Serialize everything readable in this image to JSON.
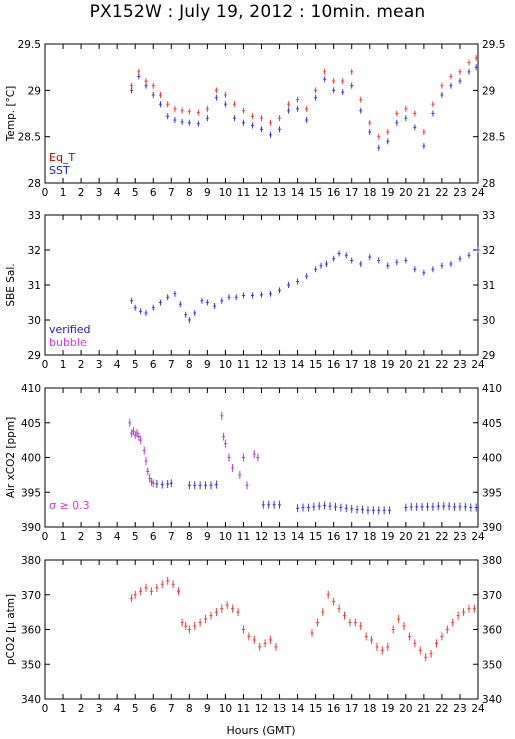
{
  "title": "PX152W : July 19, 2012 : 10min. mean",
  "xlabel": "Hours (GMT)",
  "colors": {
    "red": "#e8403c",
    "blue": "#3a3ad4",
    "purple": "#b040c8",
    "magenta": "#d43ad4",
    "darkred": "#c00000",
    "darkblue": "#1a1ab0"
  },
  "x_ticks": [
    "0",
    "1",
    "2",
    "3",
    "4",
    "5",
    "6",
    "7",
    "8",
    "9",
    "10",
    "11",
    "12",
    "13",
    "14",
    "15",
    "16",
    "17",
    "18",
    "19",
    "20",
    "21",
    "22",
    "23",
    "24"
  ],
  "chart_data": [
    {
      "type": "scatter",
      "ylabel": "Temp. [°C]",
      "ylim": [
        28,
        29.5
      ],
      "y_ticks": [
        "28",
        "28.5",
        "29",
        "29.5"
      ],
      "legend": [
        {
          "name": "Eq_T",
          "color": "#c00000"
        },
        {
          "name": "SST",
          "color": "#1a1ab0"
        }
      ],
      "series": [
        {
          "name": "Eq_T",
          "color": "#e8403c",
          "x": [
            4.8,
            5.2,
            5.6,
            6.0,
            6.4,
            6.8,
            7.2,
            7.6,
            8.0,
            8.5,
            9.0,
            9.5,
            10.0,
            10.5,
            11.0,
            11.5,
            12.0,
            12.5,
            13.0,
            13.5,
            14.0,
            14.5,
            15.0,
            15.5,
            16.0,
            16.5,
            17.0,
            17.5,
            18.0,
            18.5,
            19.0,
            19.5,
            20.0,
            20.5,
            21.0,
            21.5,
            22.0,
            22.5,
            23.0,
            23.5,
            23.9
          ],
          "y": [
            29.05,
            29.2,
            29.1,
            29.05,
            28.95,
            28.85,
            28.8,
            28.78,
            28.77,
            28.76,
            28.8,
            29.0,
            28.95,
            28.85,
            28.78,
            28.72,
            28.7,
            28.65,
            28.7,
            28.85,
            28.9,
            28.8,
            29.0,
            29.2,
            29.1,
            29.1,
            29.2,
            28.9,
            28.65,
            28.5,
            28.55,
            28.75,
            28.8,
            28.75,
            28.55,
            28.85,
            29.05,
            29.15,
            29.2,
            29.3,
            29.35
          ]
        },
        {
          "name": "SST",
          "color": "#3a3ad4",
          "x": [
            4.8,
            5.2,
            5.6,
            6.0,
            6.4,
            6.8,
            7.2,
            7.6,
            8.0,
            8.5,
            9.0,
            9.5,
            10.0,
            10.5,
            11.0,
            11.5,
            12.0,
            12.5,
            13.0,
            13.5,
            14.0,
            14.5,
            15.0,
            15.5,
            16.0,
            16.5,
            17.0,
            17.5,
            18.0,
            18.5,
            19.0,
            19.5,
            20.0,
            20.5,
            21.0,
            21.5,
            22.0,
            22.5,
            23.0,
            23.5,
            23.9
          ],
          "y": [
            29.0,
            29.15,
            29.05,
            28.95,
            28.85,
            28.72,
            28.68,
            28.66,
            28.65,
            28.64,
            28.7,
            28.92,
            28.85,
            28.7,
            28.65,
            28.62,
            28.58,
            28.52,
            28.58,
            28.78,
            28.8,
            28.68,
            28.92,
            29.12,
            29.0,
            28.98,
            29.05,
            28.78,
            28.55,
            28.38,
            28.45,
            28.65,
            28.7,
            28.6,
            28.4,
            28.75,
            28.95,
            29.05,
            29.1,
            29.2,
            29.25
          ]
        }
      ]
    },
    {
      "type": "scatter",
      "ylabel": "SBE Sal.",
      "ylim": [
        29,
        33
      ],
      "y_ticks": [
        "29",
        "30",
        "31",
        "32",
        "33"
      ],
      "legend": [
        {
          "name": "verified",
          "color": "#1a1ab0"
        },
        {
          "name": "bubble",
          "color": "#d43ad4"
        }
      ],
      "series": [
        {
          "name": "verified",
          "color": "#3a3ad4",
          "x": [
            4.8,
            5.0,
            5.3,
            5.6,
            6.0,
            6.4,
            6.8,
            7.2,
            7.5,
            7.8,
            8.0,
            8.3,
            8.7,
            9.0,
            9.4,
            9.8,
            10.2,
            10.6,
            11.0,
            11.5,
            12.0,
            12.5,
            13.0,
            13.5,
            14.0,
            14.5,
            15.0,
            15.3,
            15.6,
            16.0,
            16.3,
            16.7,
            17.0,
            17.5,
            18.0,
            18.5,
            19.0,
            19.5,
            20.0,
            20.5,
            21.0,
            21.5,
            22.0,
            22.5,
            23.0,
            23.5,
            24.0
          ],
          "y": [
            30.55,
            30.35,
            30.25,
            30.2,
            30.35,
            30.5,
            30.65,
            30.75,
            30.45,
            30.15,
            30.0,
            30.2,
            30.55,
            30.5,
            30.4,
            30.55,
            30.65,
            30.65,
            30.7,
            30.7,
            30.72,
            30.75,
            30.85,
            31.0,
            31.1,
            31.25,
            31.45,
            31.55,
            31.6,
            31.75,
            31.9,
            31.85,
            31.7,
            31.6,
            31.8,
            31.7,
            31.55,
            31.65,
            31.7,
            31.45,
            31.35,
            31.45,
            31.55,
            31.6,
            31.75,
            31.85,
            32.0
          ]
        }
      ]
    },
    {
      "type": "scatter",
      "ylabel": "Air xCO2 [ppm]",
      "ylim": [
        390,
        410
      ],
      "y_ticks": [
        "390",
        "395",
        "400",
        "405",
        "410"
      ],
      "annotation": "σ ≥ 0.3",
      "series": [
        {
          "name": "sigma>=0.3",
          "color": "#b040c8",
          "x": [
            4.7,
            4.8,
            4.9,
            5.0,
            5.1,
            5.2,
            5.3,
            5.5,
            5.6,
            5.7,
            5.8,
            5.9,
            6.0,
            9.8,
            9.9,
            10.0,
            10.2,
            10.4,
            10.8,
            11.0,
            11.2,
            11.6,
            11.8
          ],
          "y": [
            405,
            403.5,
            403.8,
            403.2,
            403.5,
            403.0,
            402.5,
            401,
            399.5,
            398,
            397,
            396.5,
            396.3,
            406,
            403,
            402,
            400,
            398.5,
            397.5,
            400,
            396,
            400.5,
            400
          ]
        },
        {
          "name": "air",
          "color": "#3a3ad4",
          "x": [
            6.2,
            6.5,
            6.8,
            7.0,
            8.0,
            8.3,
            8.6,
            8.9,
            9.2,
            9.5,
            12.1,
            12.4,
            12.7,
            13.0,
            14.0,
            14.3,
            14.6,
            14.9,
            15.2,
            15.5,
            15.8,
            16.1,
            16.4,
            16.7,
            17.0,
            17.3,
            17.6,
            17.9,
            18.2,
            18.5,
            18.8,
            19.1,
            20.0,
            20.3,
            20.6,
            20.9,
            21.2,
            21.5,
            21.8,
            22.1,
            22.4,
            22.7,
            23.0,
            23.3,
            23.6,
            23.9
          ],
          "y": [
            396.2,
            396.1,
            396.2,
            396.3,
            396.0,
            396.0,
            396.0,
            396.0,
            396.0,
            396.1,
            393.2,
            393.2,
            393.2,
            393.2,
            392.7,
            392.8,
            392.8,
            392.9,
            393.0,
            393.1,
            393.0,
            392.9,
            392.8,
            392.7,
            392.6,
            392.5,
            392.5,
            392.4,
            392.4,
            392.4,
            392.4,
            392.4,
            392.8,
            392.9,
            392.9,
            392.9,
            392.9,
            392.9,
            393.0,
            393.0,
            393.0,
            392.9,
            392.9,
            392.9,
            392.8,
            392.8
          ]
        }
      ]
    },
    {
      "type": "scatter",
      "ylabel": "pCO2 [µ atm]",
      "ylim": [
        340,
        380
      ],
      "y_ticks": [
        "340",
        "350",
        "360",
        "370",
        "380"
      ],
      "series": [
        {
          "name": "pCO2",
          "color": "#e8403c",
          "x": [
            4.8,
            5.0,
            5.3,
            5.6,
            5.9,
            6.2,
            6.5,
            6.8,
            7.1,
            7.4,
            7.6,
            7.8,
            8.0,
            8.3,
            8.6,
            8.9,
            9.2,
            9.5,
            9.8,
            10.1,
            10.4,
            10.7,
            11.0,
            11.3,
            11.6,
            11.9,
            12.2,
            12.5,
            12.8,
            14.8,
            15.1,
            15.4,
            15.7,
            16.0,
            16.3,
            16.6,
            16.9,
            17.2,
            17.5,
            17.8,
            18.1,
            18.4,
            18.7,
            19.0,
            19.3,
            19.6,
            19.9,
            20.2,
            20.5,
            20.8,
            21.1,
            21.4,
            21.7,
            22.0,
            22.3,
            22.6,
            22.9,
            23.2,
            23.5,
            23.8
          ],
          "y": [
            369,
            370,
            371,
            372,
            371,
            372,
            373,
            374,
            373,
            371,
            362,
            361,
            360,
            361,
            362,
            363,
            364,
            365,
            366,
            367,
            366,
            365,
            360,
            358,
            357,
            355,
            356,
            357,
            355,
            359,
            362,
            365,
            370,
            368,
            366,
            364,
            362,
            362,
            361,
            358,
            357,
            355,
            354,
            355,
            360,
            363,
            361,
            358,
            356,
            354,
            352,
            353,
            356,
            358,
            360,
            362,
            364,
            365,
            366,
            366
          ]
        }
      ]
    }
  ]
}
